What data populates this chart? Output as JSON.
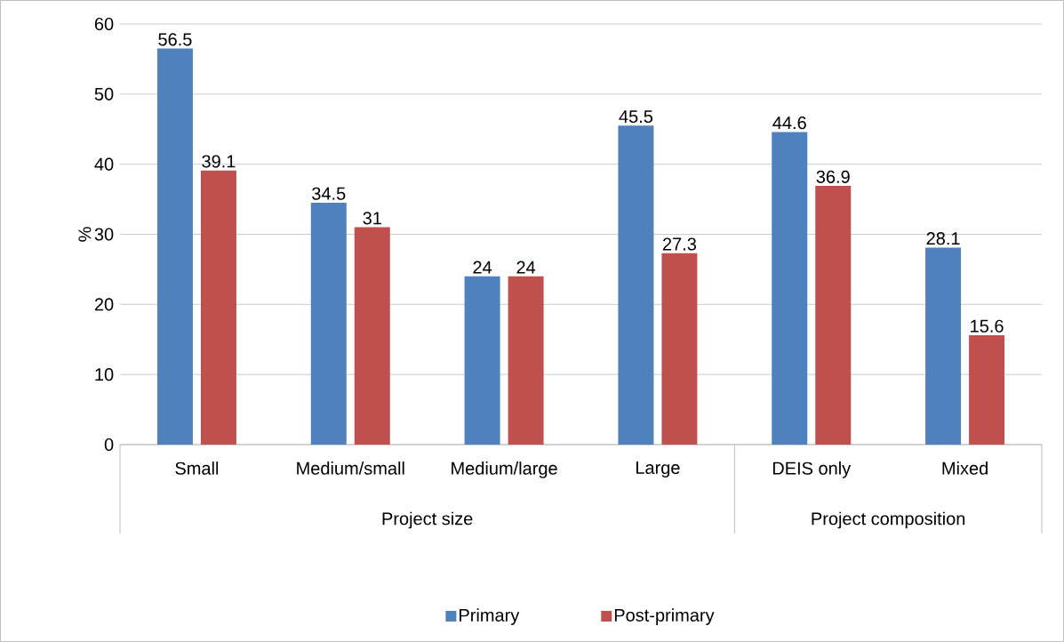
{
  "chart_data": {
    "type": "bar",
    "ylabel": "%",
    "categories": [
      "Small",
      "Medium/small",
      "Medium/large",
      "Large",
      "DEIS only",
      "Mixed"
    ],
    "series": [
      {
        "name": "Primary",
        "color": "#4f81bd",
        "values": [
          56.5,
          34.5,
          24,
          45.5,
          44.6,
          28.1
        ]
      },
      {
        "name": "Post-primary",
        "color": "#c0504d",
        "values": [
          39.1,
          31,
          24,
          27.3,
          36.9,
          15.6
        ]
      }
    ],
    "annotations": [
      "Project size",
      "Project composition"
    ],
    "ylim": [
      0,
      60
    ],
    "yticks": [
      0,
      10,
      20,
      30,
      40,
      50,
      60
    ],
    "grid": "y",
    "legend": "bottom",
    "data_labels": true
  }
}
